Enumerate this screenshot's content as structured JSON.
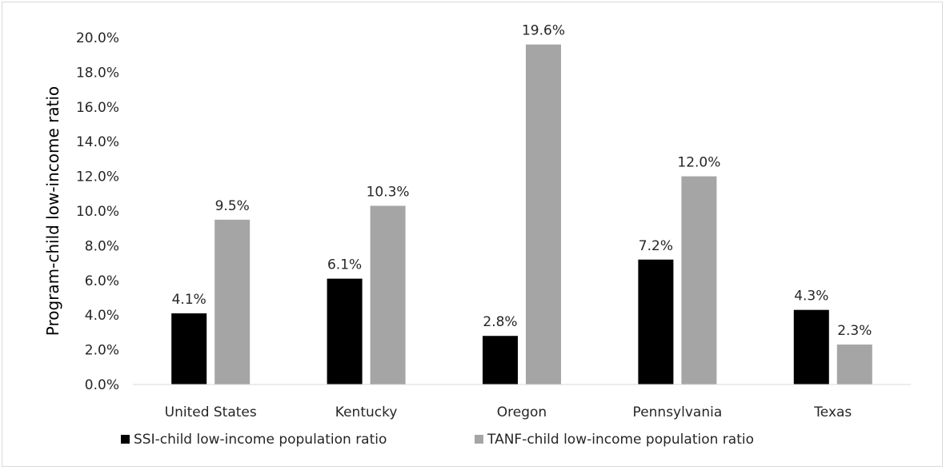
{
  "chart_data": {
    "type": "bar",
    "categories": [
      "United States",
      "Kentucky",
      "Oregon",
      "Pennsylvania",
      "Texas"
    ],
    "series": [
      {
        "name": "SSI-child low-income population ratio",
        "color": "#000000",
        "values": [
          4.1,
          6.1,
          2.8,
          7.2,
          4.3
        ],
        "labels": [
          "4.1%",
          "6.1%",
          "2.8%",
          "7.2%",
          "4.3%"
        ]
      },
      {
        "name": "TANF-child low-income population ratio",
        "color": "#a5a5a5",
        "values": [
          9.5,
          10.3,
          19.6,
          12.0,
          2.3
        ],
        "labels": [
          "9.5%",
          "10.3%",
          "19.6%",
          "12.0%",
          "2.3%"
        ]
      }
    ],
    "title": "",
    "xlabel": "",
    "ylabel": "Program-child low-income ratio",
    "ylim": [
      0,
      20
    ],
    "yticks": [
      0,
      2,
      4,
      6,
      8,
      10,
      12,
      14,
      16,
      18,
      20
    ],
    "ytick_labels": [
      "0.0%",
      "2.0%",
      "4.0%",
      "6.0%",
      "8.0%",
      "10.0%",
      "12.0%",
      "14.0%",
      "16.0%",
      "18.0%",
      "20.0%"
    ],
    "grid": false,
    "legend": "bottom"
  }
}
